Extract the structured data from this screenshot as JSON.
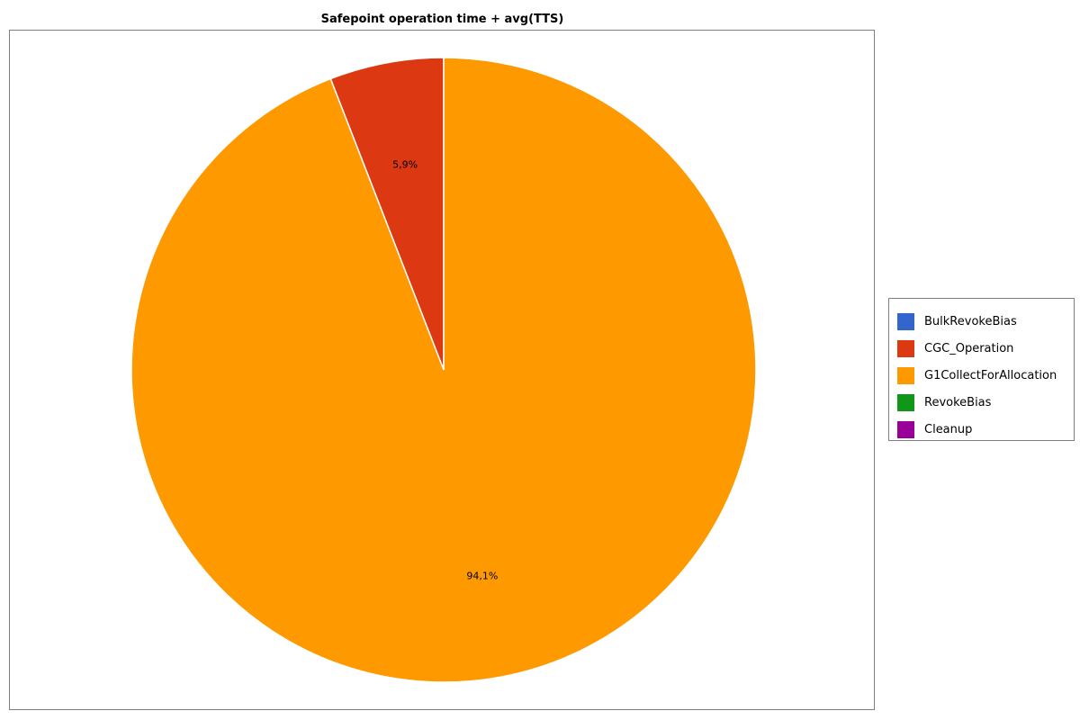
{
  "chart_data": {
    "type": "pie",
    "title": "Safepoint operation time + avg(TTS)",
    "categories": [
      "BulkRevokeBias",
      "CGC_Operation",
      "G1CollectForAllocation",
      "RevokeBias",
      "Cleanup"
    ],
    "values": [
      0.0,
      5.9,
      94.1,
      0.0,
      0.0
    ],
    "value_labels": [
      "",
      "5,9%",
      "94,1%",
      "",
      ""
    ],
    "colors": [
      "#3366cc",
      "#dc3912",
      "#ff9900",
      "#109618",
      "#990099"
    ],
    "legend_position": "right",
    "start_angle": "top",
    "direction": "counterclockwise"
  }
}
